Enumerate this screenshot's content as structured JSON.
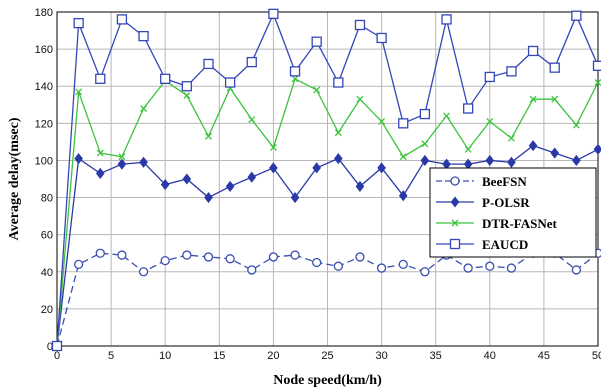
{
  "chart_data": {
    "type": "line",
    "title": "",
    "xlabel": "Node speed(km/h)",
    "ylabel": "Average delay(msec)",
    "xlim": [
      0,
      50
    ],
    "ylim": [
      0,
      180
    ],
    "xticks": [
      0,
      5,
      10,
      15,
      20,
      25,
      30,
      35,
      40,
      45,
      50
    ],
    "yticks": [
      0,
      20,
      40,
      60,
      80,
      100,
      120,
      140,
      160,
      180
    ],
    "grid": true,
    "legend_position": "right",
    "x": [
      0,
      2,
      4,
      6,
      8,
      10,
      12,
      14,
      16,
      18,
      20,
      22,
      24,
      26,
      28,
      30,
      32,
      34,
      36,
      38,
      40,
      42,
      44,
      46,
      48,
      50
    ],
    "series": [
      {
        "name": "BeeFSN",
        "color": "#3a4fb0",
        "marker": "circle",
        "dash": true,
        "values": [
          0,
          44,
          50,
          49,
          40,
          46,
          49,
          48,
          47,
          41,
          48,
          49,
          45,
          43,
          48,
          42,
          44,
          40,
          49,
          42,
          43,
          42,
          50,
          50,
          41,
          50
        ]
      },
      {
        "name": "P-OLSR",
        "color": "#2a39a8",
        "marker": "diamond",
        "dash": false,
        "values": [
          0,
          101,
          93,
          98,
          99,
          87,
          90,
          80,
          86,
          91,
          96,
          80,
          96,
          101,
          86,
          96,
          81,
          100,
          98,
          98,
          100,
          99,
          108,
          104,
          100,
          106
        ]
      },
      {
        "name": "DTR-FASNet",
        "color": "#3cc43c",
        "marker": "x",
        "dash": false,
        "values": [
          0,
          137,
          104,
          102,
          128,
          143,
          135,
          113,
          139,
          122,
          107,
          144,
          138,
          115,
          133,
          121,
          102,
          109,
          124,
          106,
          121,
          112,
          133,
          133,
          119,
          142
        ]
      },
      {
        "name": "EAUCD",
        "color": "#3447b8",
        "marker": "square",
        "dash": false,
        "values": [
          0,
          174,
          144,
          176,
          167,
          144,
          140,
          152,
          142,
          153,
          179,
          148,
          164,
          142,
          173,
          166,
          120,
          125,
          176,
          128,
          145,
          148,
          159,
          150,
          178,
          151
        ]
      }
    ]
  }
}
